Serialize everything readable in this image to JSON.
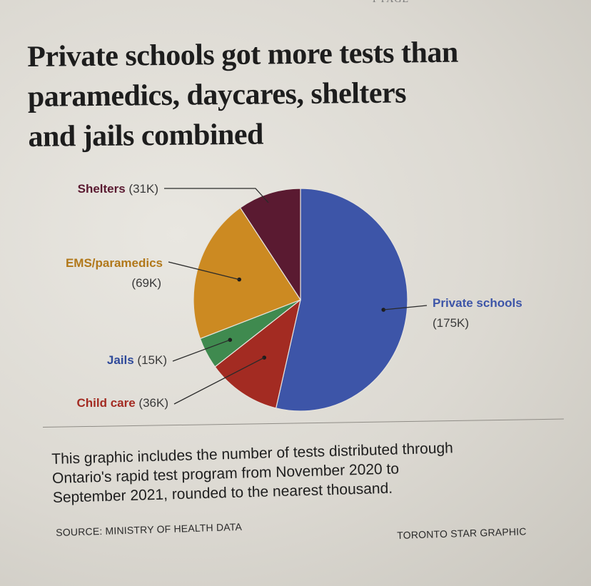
{
  "page": {
    "kicker": "T PAGE",
    "headline_lines": [
      "Private schools got more tests than",
      "paramedics, daycares, shelters",
      "and jails combined"
    ],
    "note_lines": [
      "This graphic includes the number of tests distributed through",
      "Ontario's rapid test program from November 2020 to",
      "September 2021, rounded to the nearest thousand."
    ],
    "source": "SOURCE: MINISTRY OF HEALTH DATA",
    "credit": "TORONTO STAR GRAPHIC"
  },
  "chart_data": {
    "type": "pie",
    "title": "Private schools got more tests than paramedics, daycares, shelters and jails combined",
    "units": "tests (thousands)",
    "slices": [
      {
        "name": "Private schools",
        "value": 175,
        "value_label": "(175K)",
        "color": "#3d55a8"
      },
      {
        "name": "Child care",
        "value": 36,
        "value_label": "(36K)",
        "color": "#a32b22"
      },
      {
        "name": "Jails",
        "value": 15,
        "value_label": "(15K)",
        "color": "#3f8a4f"
      },
      {
        "name": "EMS/paramedics",
        "value": 69,
        "value_label": "(69K)",
        "color": "#cc8a22"
      },
      {
        "name": "Shelters",
        "value": 31,
        "value_label": "(31K)",
        "color": "#5a1a31"
      }
    ],
    "label_colors": {
      "Private schools": "#3d55a8",
      "Child care": "#a32b22",
      "Jails": "#2f4a9a",
      "EMS/paramedics": "#b1781a",
      "Shelters": "#5a1a31"
    }
  }
}
